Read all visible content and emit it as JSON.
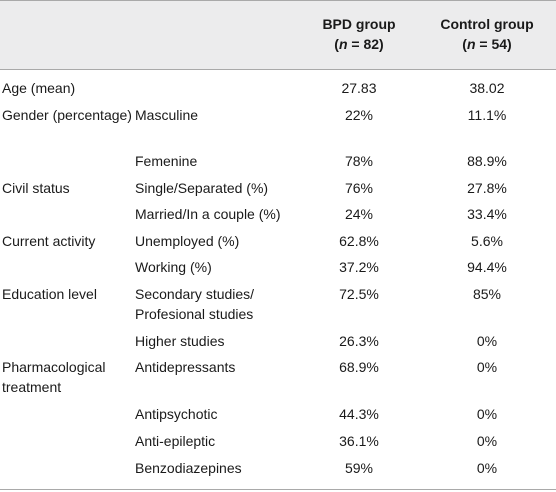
{
  "columns": {
    "bpd": {
      "name": "BPD group",
      "n_prefix": "(",
      "n_var": "n",
      "n_eq": " = 82)"
    },
    "control": {
      "name": "Control group",
      "n_prefix": "(",
      "n_var": "n",
      "n_eq": " = 54)"
    }
  },
  "rows": [
    {
      "category": "Age (mean)",
      "subcategory": "",
      "bpd": "27.83",
      "control": "38.02"
    },
    {
      "category": "Gender (percentage)",
      "subcategory": "Masculine",
      "bpd": "22%",
      "control": "11.1%"
    },
    {
      "category": "",
      "subcategory": "Femenine",
      "bpd": "78%",
      "control": "88.9%"
    },
    {
      "category": "Civil status",
      "subcategory": "Single/Separated (%)",
      "bpd": "76%",
      "control": "27.8%"
    },
    {
      "category": "",
      "subcategory": "Married/In a couple (%)",
      "bpd": "24%",
      "control": "33.4%"
    },
    {
      "category": "Current activity",
      "subcategory": "Unemployed (%)",
      "bpd": "62.8%",
      "control": "5.6%"
    },
    {
      "category": "",
      "subcategory": "Working (%)",
      "bpd": "37.2%",
      "control": "94.4%"
    },
    {
      "category": "Education level",
      "subcategory": "Secondary studies/ Profesional studies",
      "bpd": "72.5%",
      "control": "85%"
    },
    {
      "category": "",
      "subcategory": "Higher studies",
      "bpd": "26.3%",
      "control": "0%"
    },
    {
      "category": "Pharmacological treatment",
      "subcategory": "Antidepressants",
      "bpd": "68.9%",
      "control": "0%"
    },
    {
      "category": "",
      "subcategory": "Antipsychotic",
      "bpd": "44.3%",
      "control": "0%"
    },
    {
      "category": "",
      "subcategory": "Anti-epileptic",
      "bpd": "36.1%",
      "control": "0%"
    },
    {
      "category": "",
      "subcategory": "Benzodiazepines",
      "bpd": "59%",
      "control": "0%"
    }
  ]
}
